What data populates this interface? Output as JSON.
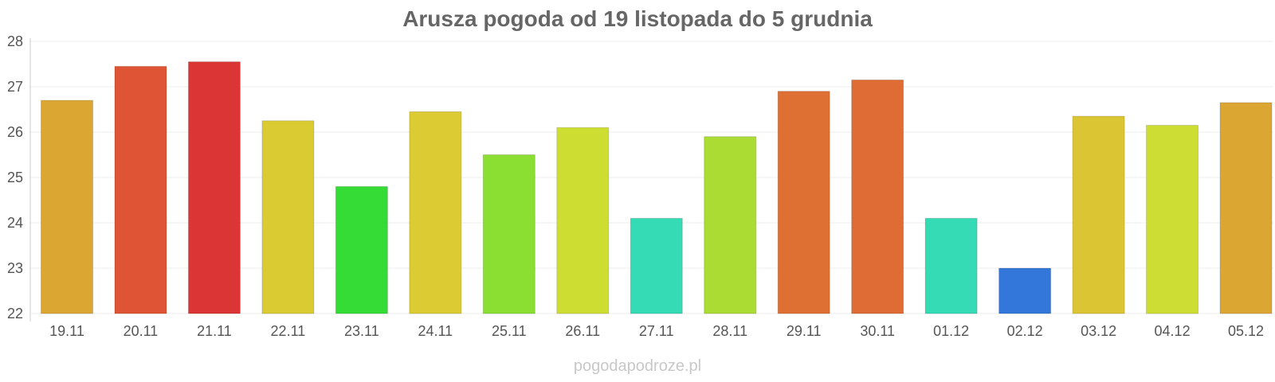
{
  "chart_data": {
    "type": "bar",
    "title": "Arusza pogoda od 19 listopada do 5 grudnia",
    "categories": [
      "19.11",
      "20.11",
      "21.11",
      "22.11",
      "23.11",
      "24.11",
      "25.11",
      "26.11",
      "27.11",
      "28.11",
      "29.11",
      "30.11",
      "01.12",
      "02.12",
      "03.12",
      "04.12",
      "05.12"
    ],
    "values": [
      26.7,
      27.45,
      27.55,
      26.25,
      24.8,
      26.45,
      25.5,
      26.1,
      24.1,
      25.9,
      26.9,
      27.15,
      24.1,
      23.0,
      26.35,
      26.15,
      26.65
    ],
    "colors": [
      "#dca633",
      "#de5434",
      "#dc3535",
      "#dbcb33",
      "#34dc35",
      "#dccb33",
      "#8adf32",
      "#cddd32",
      "#34dbb5",
      "#abdc33",
      "#de7034",
      "#de6c34",
      "#34dbb5",
      "#3477db",
      "#dcc533",
      "#cedd33",
      "#dca633"
    ],
    "ylim": [
      22,
      28
    ],
    "yticks": [
      22,
      23,
      24,
      25,
      26,
      27,
      28
    ],
    "grid": true,
    "xlabel": "",
    "ylabel": ""
  },
  "watermark": "pogodapodroze.pl"
}
